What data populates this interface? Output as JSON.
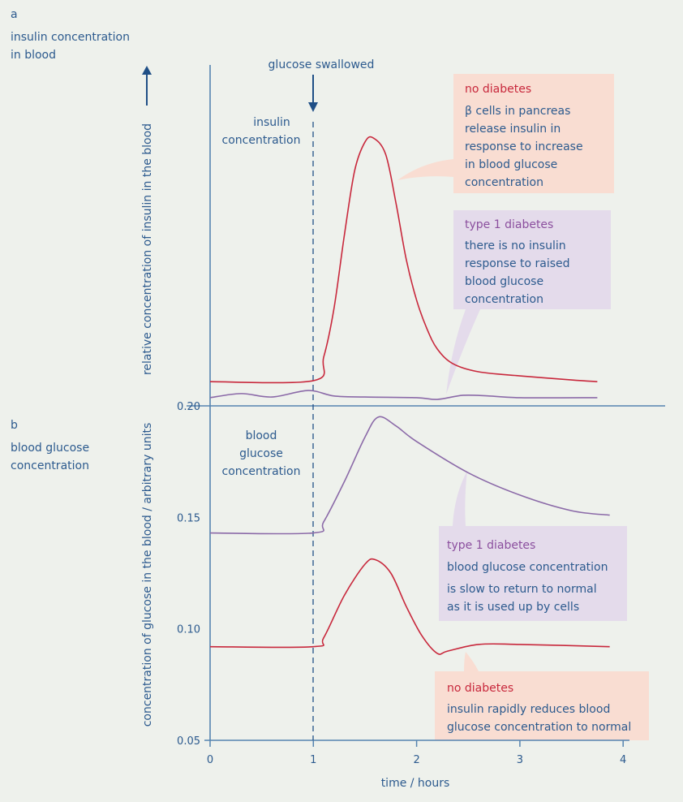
{
  "panel_a": {
    "letter": "a",
    "title_lines": [
      "insulin concentration",
      "in blood"
    ],
    "inner_label_lines": [
      "insulin",
      "concentration"
    ],
    "y_label": "relative concentration of insulin in the blood"
  },
  "panel_b": {
    "letter": "b",
    "title_lines": [
      "blood glucose",
      "concentration"
    ],
    "inner_label_lines": [
      "blood",
      "glucose",
      "concentration"
    ],
    "y_label": "concentration of glucose in the blood / arbitrary units"
  },
  "event_label": "glucose swallowed",
  "annotations": {
    "insulin_no_diabetes": {
      "heading": "no diabetes",
      "lines": [
        "β cells in pancreas",
        "release insulin in",
        "response to increase",
        "in blood glucose",
        "concentration"
      ]
    },
    "insulin_type1": {
      "heading": "type 1 diabetes",
      "lines": [
        "there is no insulin",
        "response to raised",
        "blood glucose",
        "concentration"
      ]
    },
    "glucose_type1": {
      "heading": "type 1 diabetes",
      "lines": [
        "blood glucose concentration",
        "is slow to return to normal",
        "as it is used up by cells"
      ]
    },
    "glucose_no_diabetes": {
      "heading": "no diabetes",
      "lines": [
        "insulin rapidly reduces blood",
        "glucose concentration to normal"
      ]
    }
  },
  "colors": {
    "no_diabetes": "#c8283c",
    "type1": "#8b6aa8",
    "axis": "#5584b0",
    "text": "#2c5a8e",
    "no_diabetes_box": "#f9ddd2",
    "type1_box": "#e4dbeb",
    "background": "#eef1ec"
  },
  "chart_data": [
    {
      "type": "line",
      "panel": "a",
      "xlabel": "time / hours",
      "ylabel": "relative concentration of insulin in the blood",
      "xlim": [
        0,
        4
      ],
      "event_x": 1,
      "series": [
        {
          "key": "no_diabetes",
          "x": [
            0,
            1,
            1.1,
            1.2,
            1.3,
            1.4,
            1.5,
            1.58,
            1.7,
            1.8,
            1.9,
            2.0,
            2.1,
            2.2,
            2.35,
            2.6,
            3.0,
            3.5,
            3.75
          ],
          "y": [
            0.071,
            0.074,
            0.143,
            0.286,
            0.5,
            0.69,
            0.774,
            0.786,
            0.738,
            0.595,
            0.429,
            0.31,
            0.226,
            0.167,
            0.124,
            0.1,
            0.088,
            0.076,
            0.071
          ]
        },
        {
          "key": "type1",
          "x": [
            0,
            0.3,
            0.6,
            0.95,
            1.2,
            1.5,
            2.0,
            2.2,
            2.45,
            2.7,
            3.0,
            3.75
          ],
          "y": [
            0.024,
            0.036,
            0.026,
            0.045,
            0.029,
            0.026,
            0.024,
            0.019,
            0.031,
            0.029,
            0.024,
            0.024
          ]
        }
      ]
    },
    {
      "type": "line",
      "panel": "b",
      "xlabel": "time / hours",
      "ylabel": "concentration of glucose in the blood / arbitrary units",
      "xlim": [
        0,
        4
      ],
      "ylim": [
        0.05,
        0.2
      ],
      "x_ticks": [
        "0",
        "1",
        "2",
        "3",
        "4"
      ],
      "y_ticks": [
        "0.05",
        "0.10",
        "0.15",
        "0.20"
      ],
      "event_x": 1,
      "series": [
        {
          "key": "type1",
          "x": [
            0,
            1,
            1.1,
            1.3,
            1.5,
            1.63,
            1.8,
            2.0,
            2.5,
            3.0,
            3.5,
            3.87
          ],
          "y": [
            0.143,
            0.143,
            0.148,
            0.166,
            0.186,
            0.195,
            0.191,
            0.184,
            0.17,
            0.16,
            0.153,
            0.151
          ]
        },
        {
          "key": "no_diabetes",
          "x": [
            0,
            1,
            1.1,
            1.3,
            1.5,
            1.6,
            1.75,
            1.9,
            2.05,
            2.2,
            2.3,
            2.6,
            3.0,
            3.87
          ],
          "y": [
            0.092,
            0.092,
            0.096,
            0.115,
            0.129,
            0.131,
            0.125,
            0.11,
            0.097,
            0.089,
            0.09,
            0.093,
            0.093,
            0.092
          ]
        }
      ]
    }
  ]
}
